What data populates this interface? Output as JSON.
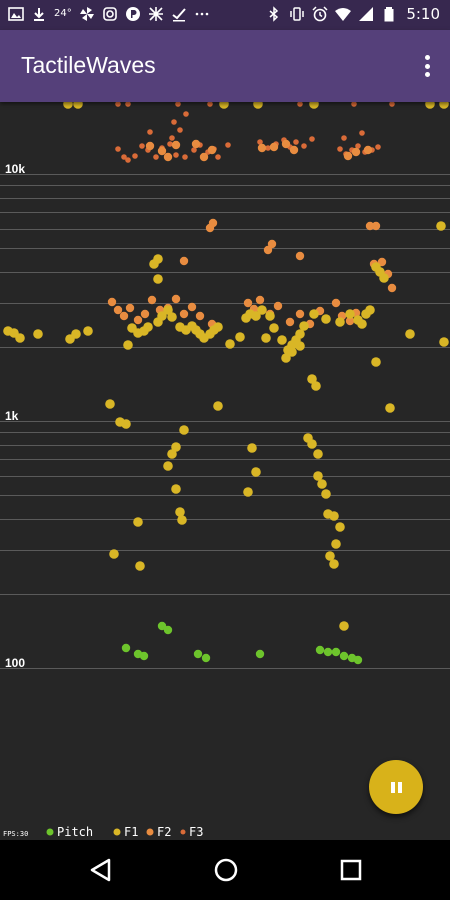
{
  "status_bar": {
    "temperature": "24°",
    "time": "5:10",
    "left_icons": [
      "gallery-icon",
      "download-icon",
      "temperature-icon",
      "pinwheel-icon",
      "instagram-icon",
      "p-icon",
      "crossed-app-icon",
      "check-icon",
      "more-notifications-icon"
    ],
    "right_icons": [
      "bluetooth-icon",
      "vibrate-icon",
      "alarm-icon",
      "wifi-icon",
      "signal-icon",
      "battery-icon"
    ]
  },
  "app_bar": {
    "title": "TactileWaves"
  },
  "spectrogram": {
    "axis_labels": {
      "10k": "10k",
      "1k": "1k",
      "100": "100"
    },
    "fps_label": "FPS:30",
    "legend": [
      {
        "key": "pitch",
        "label": "Pitch",
        "color": "#6dc42c"
      },
      {
        "key": "f1",
        "label": "F1",
        "color": "#d9b626"
      },
      {
        "key": "f2",
        "label": "F2",
        "color": "#e88c40"
      },
      {
        "key": "f3",
        "label": "F3",
        "color": "#d96b38"
      }
    ],
    "colors": {
      "background": "#262626",
      "grid": "#5a5a5a",
      "pitch": "#6dc42c",
      "f1": "#d9b626",
      "f2": "#e88c40",
      "f3": "#d96b38"
    }
  },
  "fab": {
    "icon": "pause-icon",
    "color": "#d8b21a"
  },
  "nav_bar": {
    "icons": [
      "back-icon",
      "home-icon",
      "recents-icon"
    ]
  }
}
